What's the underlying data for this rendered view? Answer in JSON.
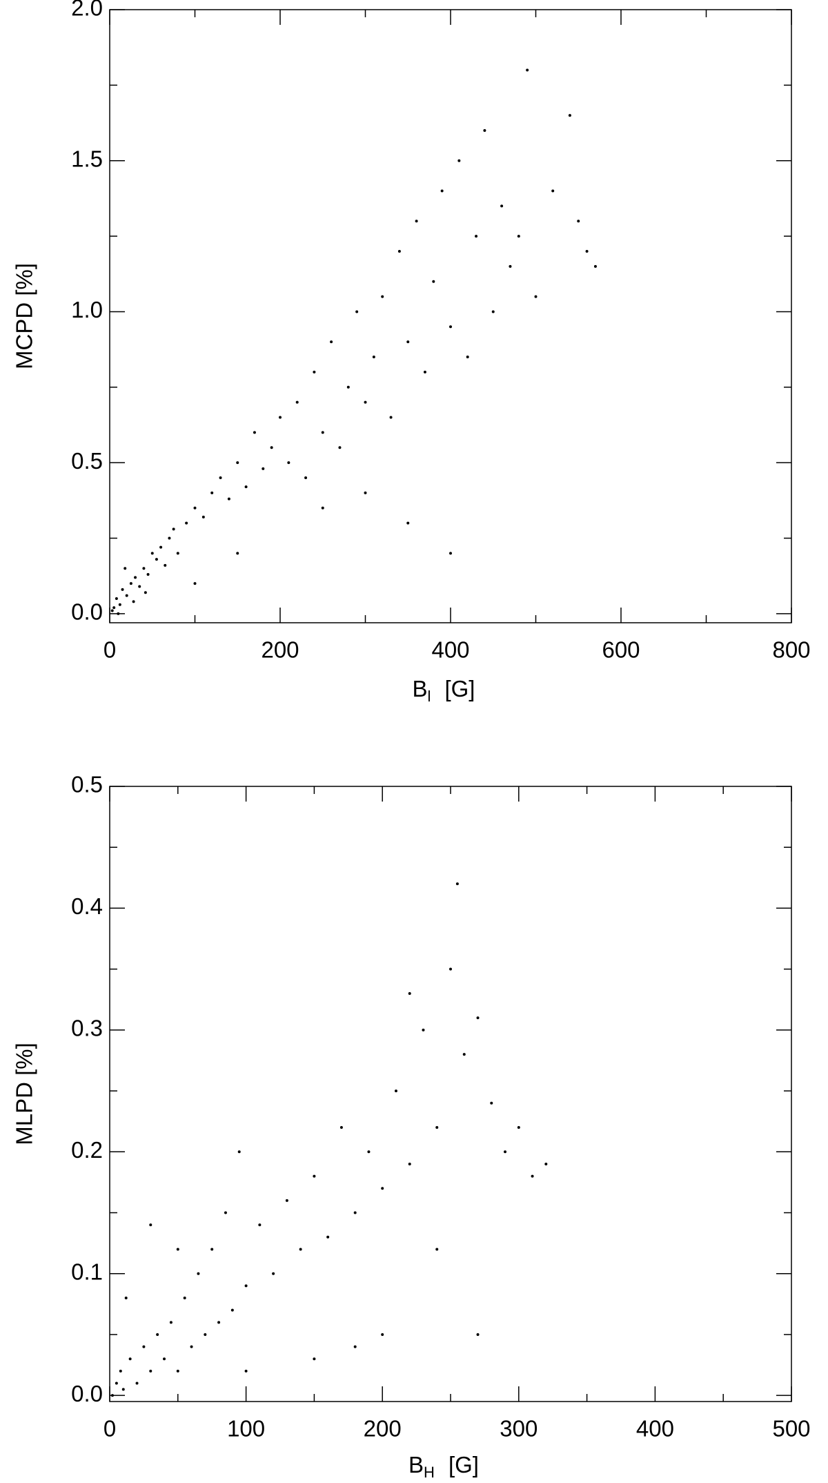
{
  "chart_data": [
    {
      "type": "scatter",
      "color": "#000000",
      "ylabel": "MCPD [%]",
      "xlabel": "B",
      "xlabel_sub": "l",
      "xlabel_unit": "[G]",
      "xlim": [
        0,
        800
      ],
      "xticks": [
        0,
        200,
        400,
        600,
        800
      ],
      "xminorticks": [
        100,
        300,
        500,
        700
      ],
      "ylim": [
        -0.03,
        2.0
      ],
      "yticks": [
        {
          "value": 0,
          "label": "0.0"
        },
        0.5,
        {
          "value": 1,
          "label": "1.0"
        },
        1.5,
        {
          "value": 2,
          "label": "2.0"
        }
      ],
      "yminorticks": [
        0.25,
        0.75,
        1.25,
        1.75
      ],
      "x": [
        5,
        8,
        12,
        15,
        20,
        25,
        30,
        35,
        40,
        45,
        50,
        55,
        60,
        65,
        70,
        75,
        80,
        90,
        100,
        110,
        120,
        130,
        140,
        150,
        160,
        170,
        180,
        190,
        200,
        210,
        220,
        230,
        240,
        250,
        260,
        270,
        280,
        290,
        300,
        310,
        320,
        330,
        340,
        350,
        360,
        370,
        380,
        390,
        400,
        410,
        420,
        430,
        440,
        450,
        460,
        470,
        480,
        490,
        500,
        520,
        540,
        550,
        560,
        570,
        350,
        400,
        300,
        250,
        150,
        100,
        10,
        3,
        18,
        28,
        42
      ],
      "values": [
        0.02,
        0.05,
        0.03,
        0.08,
        0.06,
        0.1,
        0.12,
        0.09,
        0.15,
        0.13,
        0.2,
        0.18,
        0.22,
        0.16,
        0.25,
        0.28,
        0.2,
        0.3,
        0.35,
        0.32,
        0.4,
        0.45,
        0.38,
        0.5,
        0.42,
        0.6,
        0.48,
        0.55,
        0.65,
        0.5,
        0.7,
        0.45,
        0.8,
        0.6,
        0.9,
        0.55,
        0.75,
        1.0,
        0.7,
        0.85,
        1.05,
        0.65,
        1.2,
        0.9,
        1.3,
        0.8,
        1.1,
        1.4,
        0.95,
        1.5,
        0.85,
        1.25,
        1.6,
        1.0,
        1.35,
        1.15,
        1.25,
        1.8,
        1.05,
        1.4,
        1.65,
        1.3,
        1.2,
        1.15,
        0.3,
        0.2,
        0.4,
        0.35,
        0.2,
        0.1,
        0.0,
        0.01,
        0.15,
        0.04,
        0.07
      ]
    },
    {
      "type": "scatter",
      "color": "#000000",
      "ylabel": "MLPD [%]",
      "xlabel": "B",
      "xlabel_sub": "H",
      "xlabel_unit": "[G]",
      "xlim": [
        0,
        500
      ],
      "xticks": [
        0,
        100,
        200,
        300,
        400,
        500
      ],
      "xminorticks": [
        50,
        150,
        250,
        350,
        450
      ],
      "ylim": [
        -0.005,
        0.5
      ],
      "yticks": [
        {
          "value": 0,
          "label": "0.0"
        },
        0.1,
        0.2,
        0.3,
        0.4,
        0.5
      ],
      "yminorticks": [
        0.05,
        0.15,
        0.25,
        0.35,
        0.45
      ],
      "x": [
        2,
        5,
        8,
        10,
        15,
        20,
        25,
        30,
        35,
        40,
        45,
        50,
        55,
        60,
        65,
        70,
        75,
        80,
        85,
        90,
        95,
        100,
        110,
        120,
        130,
        140,
        150,
        160,
        170,
        180,
        190,
        200,
        210,
        220,
        230,
        240,
        250,
        255,
        260,
        270,
        280,
        290,
        300,
        310,
        320,
        200,
        150,
        100,
        50,
        30,
        12,
        180,
        240,
        270,
        220
      ],
      "values": [
        0.0,
        0.01,
        0.02,
        0.005,
        0.03,
        0.01,
        0.04,
        0.02,
        0.05,
        0.03,
        0.06,
        0.02,
        0.08,
        0.04,
        0.1,
        0.05,
        0.12,
        0.06,
        0.15,
        0.07,
        0.2,
        0.09,
        0.14,
        0.1,
        0.16,
        0.12,
        0.18,
        0.13,
        0.22,
        0.15,
        0.2,
        0.17,
        0.25,
        0.19,
        0.3,
        0.22,
        0.35,
        0.42,
        0.28,
        0.31,
        0.24,
        0.2,
        0.22,
        0.18,
        0.19,
        0.05,
        0.03,
        0.02,
        0.12,
        0.14,
        0.08,
        0.04,
        0.12,
        0.05,
        0.33
      ]
    }
  ]
}
